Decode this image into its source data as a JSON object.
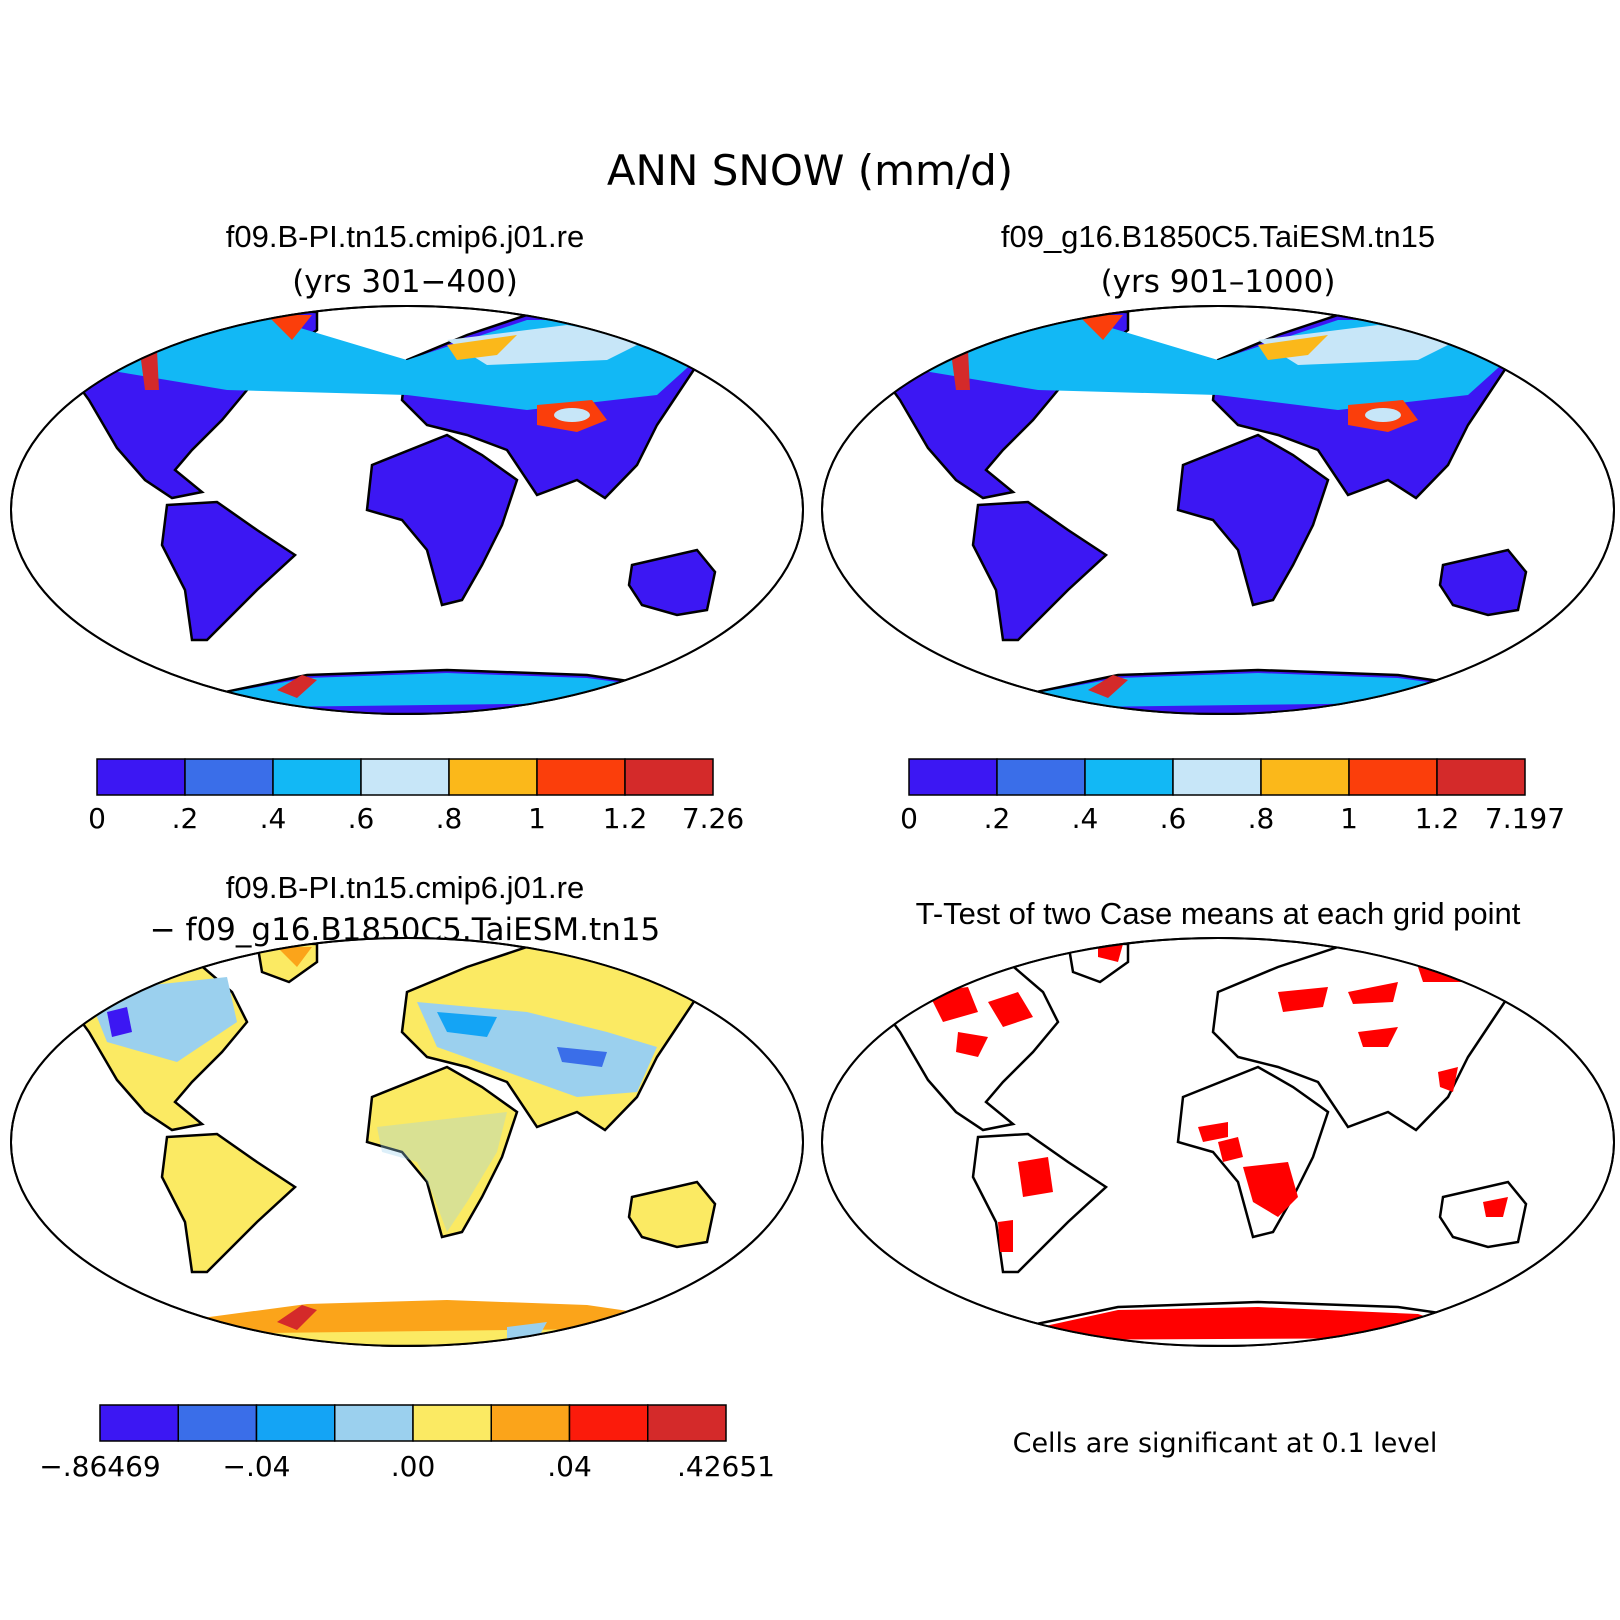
{
  "title": "ANN SNOW (mm/d)",
  "panels": {
    "case1": {
      "name": "f09.B-PI.tn15.cmip6.j01.re",
      "years": "(yrs 301−400)"
    },
    "case2": {
      "name": "f09_g16.B1850C5.TaiESM.tn15",
      "years": "(yrs 901–1000)"
    },
    "diff": {
      "line1": "f09.B-PI.tn15.cmip6.j01.re",
      "line2": "− f09_g16.B1850C5.TaiESM.tn15"
    },
    "ttest": {
      "title": "T-Test of two Case means at each grid point",
      "note": "Cells are significant at 0.1 level"
    }
  },
  "colorbars": {
    "case1": {
      "colors": [
        "#3c17f3",
        "#3a6ee9",
        "#12b8f5",
        "#c7e6f8",
        "#fbb81a",
        "#fb3e0b",
        "#d42a2a"
      ],
      "labels": [
        "0",
        ".2",
        ".4",
        ".6",
        ".8",
        "1",
        "1.2",
        "7.26"
      ]
    },
    "case2": {
      "colors": [
        "#3c17f3",
        "#3a6ee9",
        "#12b8f5",
        "#c7e6f8",
        "#fbb81a",
        "#fb3e0b",
        "#d42a2a"
      ],
      "labels": [
        "0",
        ".2",
        ".4",
        ".6",
        ".8",
        "1",
        "1.2",
        "7.197"
      ]
    },
    "diff": {
      "colors": [
        "#3c17f3",
        "#3a6ee9",
        "#14a4f5",
        "#9bd0ee",
        "#fbea63",
        "#fba41a",
        "#fb1b0b",
        "#d42a2a"
      ],
      "labels": [
        {
          "text": "−.86469",
          "at": 0
        },
        {
          "text": "−.04",
          "at": 2
        },
        {
          "text": ".00",
          "at": 4
        },
        {
          "text": ".04",
          "at": 6
        },
        {
          "text": ".42651",
          "at": 8
        }
      ]
    }
  },
  "colors": {
    "ttest_significant": "#ff0000"
  }
}
